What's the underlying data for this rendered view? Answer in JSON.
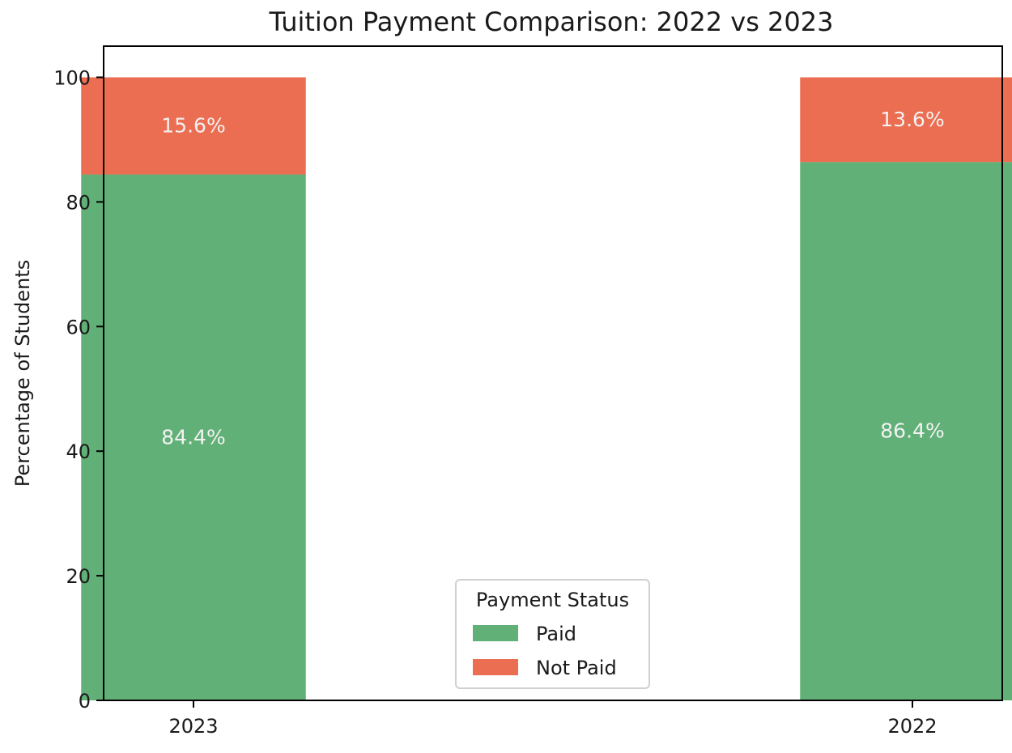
{
  "chart_data": {
    "type": "bar",
    "stacked": true,
    "title": "Tuition Payment Comparison: 2022 vs 2023",
    "xlabel": "",
    "ylabel": "Percentage of Students",
    "categories": [
      "2023",
      "2022"
    ],
    "series": [
      {
        "name": "Paid",
        "values": [
          84.4,
          86.4
        ],
        "labels": [
          "84.4%",
          "86.4%"
        ],
        "color": "#61b077"
      },
      {
        "name": "Not Paid",
        "values": [
          15.6,
          13.6
        ],
        "labels": [
          "15.6%",
          "13.6%"
        ],
        "color": "#ec6e52"
      }
    ],
    "ylim": [
      0,
      105
    ],
    "yticks": [
      0,
      20,
      40,
      60,
      80,
      100
    ],
    "grid": false,
    "legend": {
      "title": "Payment Status",
      "placement": "lower-center"
    }
  }
}
